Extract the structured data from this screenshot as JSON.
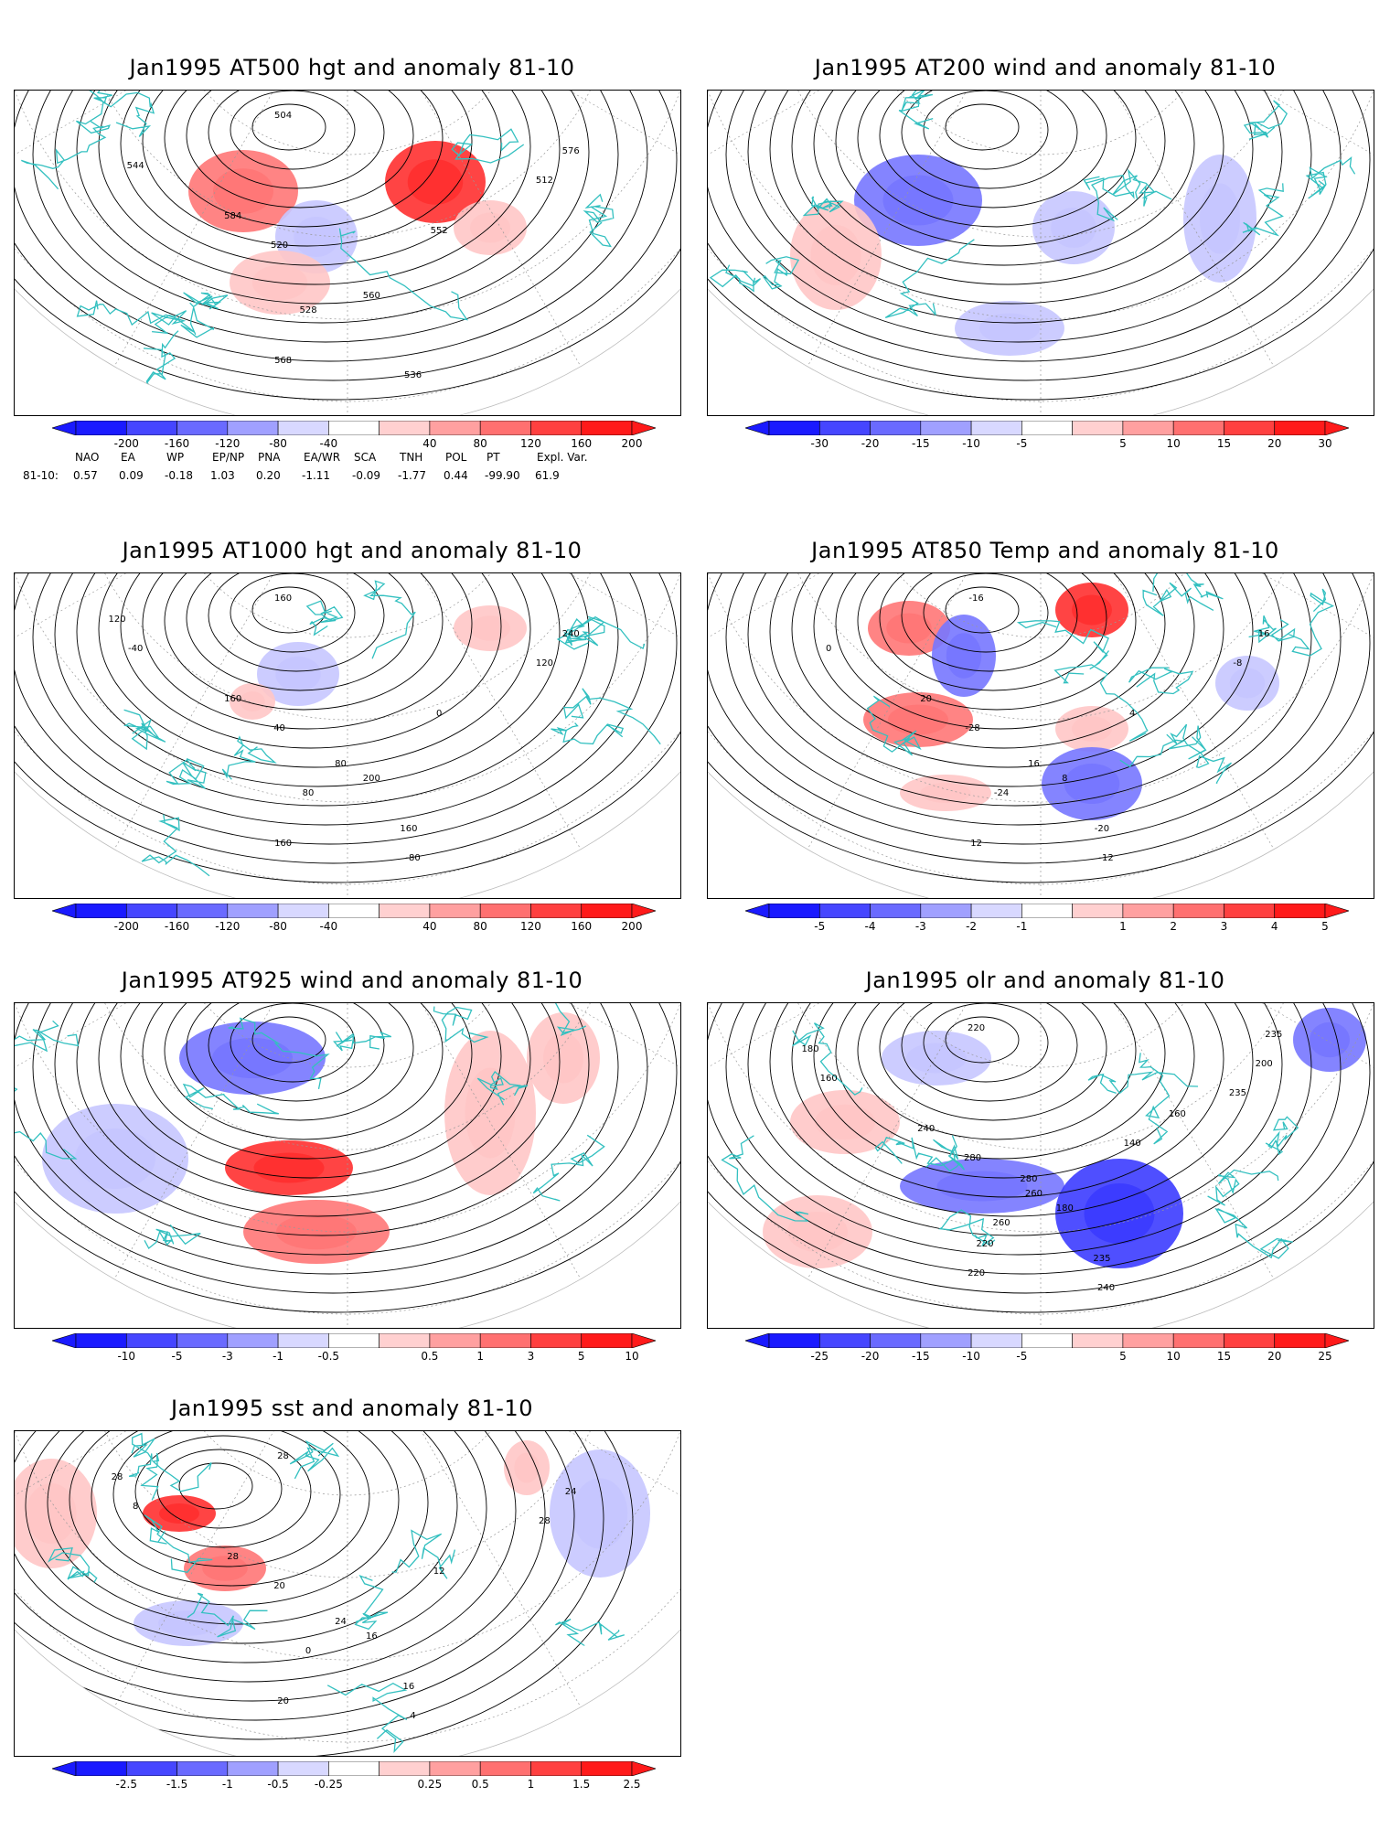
{
  "panels": [
    {
      "id": "p1",
      "title": "Jan1995 AT500 hgt and anomaly 81-10",
      "field": "hgt",
      "ticks": [
        "-200",
        "-160",
        "-120",
        "-80",
        "-40",
        "40",
        "80",
        "120",
        "160",
        "200"
      ],
      "labels": [
        "504",
        "512",
        "520",
        "528",
        "536",
        "544",
        "552",
        "560",
        "568",
        "576",
        "584"
      ]
    },
    {
      "id": "p2",
      "title": "Jan1995 AT200 wind and anomaly 81-10",
      "field": "wind",
      "ticks": [
        "-30",
        "-20",
        "-15",
        "-10",
        "-5",
        "5",
        "10",
        "15",
        "20",
        "30"
      ],
      "labels": []
    },
    {
      "id": "p3",
      "title": "Jan1995 AT1000 hgt and anomaly 81-10",
      "field": "hgt",
      "ticks": [
        "-200",
        "-160",
        "-120",
        "-80",
        "-40",
        "40",
        "80",
        "120",
        "160",
        "200"
      ],
      "labels": [
        "160",
        "120",
        "40",
        "80",
        "-80",
        "-40",
        "0",
        "200",
        "160",
        "240",
        "160",
        "80",
        "160",
        "120"
      ]
    },
    {
      "id": "p4",
      "title": "Jan1995 AT850 Temp and anomaly 81-10",
      "field": "temp",
      "ticks": [
        "-5",
        "-4",
        "-3",
        "-2",
        "-1",
        "1",
        "2",
        "3",
        "4",
        "5"
      ],
      "labels": [
        "-16",
        "-8",
        "-28",
        "-24",
        "-12",
        "0",
        "4",
        "8",
        "12",
        "16",
        "20",
        "16",
        "-20"
      ]
    },
    {
      "id": "p5",
      "title": "Jan1995 AT925 wind and anomaly 81-10",
      "field": "wind",
      "ticks": [
        "-10",
        "-5",
        "-3",
        "-1",
        "-0.5",
        "0.5",
        "1",
        "3",
        "5",
        "10"
      ],
      "labels": []
    },
    {
      "id": "p6",
      "title": "Jan1995 olr and anomaly 81-10",
      "field": "olr",
      "ticks": [
        "-25",
        "-20",
        "-15",
        "-10",
        "-5",
        "5",
        "10",
        "15",
        "20",
        "25"
      ],
      "labels": [
        "220",
        "235",
        "280",
        "260",
        "240",
        "160",
        "140",
        "180",
        "220",
        "200",
        "240",
        "260",
        "235",
        "180",
        "160",
        "280",
        "220",
        "235"
      ]
    },
    {
      "id": "p7",
      "title": "Jan1995 sst and anomaly 81-10",
      "field": "sst",
      "ticks": [
        "-2.5",
        "-1.5",
        "-1",
        "-0.5",
        "-0.25",
        "0.25",
        "0.5",
        "1",
        "1.5",
        "2.5"
      ],
      "labels": [
        "28",
        "28",
        "20",
        "0",
        "4",
        "8",
        "12",
        "16",
        "20",
        "24",
        "28",
        "24",
        "16",
        "28"
      ]
    }
  ],
  "teleconnection": {
    "headers": [
      "NAO",
      "EA",
      "WP",
      "EP/NP",
      "PNA",
      "EA/WR",
      "SCA",
      "TNH",
      "POL",
      "PT",
      "Expl. Var."
    ],
    "row_label": "81-10:",
    "values": [
      "0.57",
      "0.09",
      "-0.18",
      "1.03",
      "0.20",
      "-1.11",
      "-0.09",
      "-1.77",
      "0.44",
      "-99.90",
      "61.9"
    ]
  },
  "colors": {
    "coast": "#33c0c0",
    "neg3": "#1a1aff",
    "neg2": "#6a6aff",
    "neg1": "#b8b8ff",
    "pos1": "#ffbcbc",
    "pos2": "#ff7070",
    "pos3": "#ff1a1a"
  }
}
